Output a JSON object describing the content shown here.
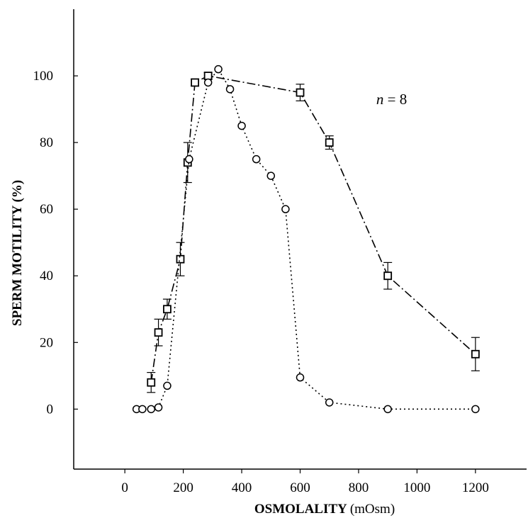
{
  "chart_data": {
    "type": "line",
    "title": "",
    "xlabel": "OSMOLALITY",
    "xlabel_unit": "(mOsm)",
    "ylabel": "SPERM MOTILITY (%)",
    "xlim": [
      -175,
      1375
    ],
    "ylim": [
      -18,
      120
    ],
    "xticks": [
      0,
      200,
      400,
      600,
      800,
      1000,
      1200
    ],
    "xtick_labels": [
      "0",
      "200",
      "400",
      "600",
      "800",
      "1000",
      "1200"
    ],
    "yticks": [
      0,
      20,
      40,
      60,
      80,
      100
    ],
    "ytick_labels": [
      "0",
      "20",
      "40",
      "60",
      "80",
      "100"
    ],
    "grid": false,
    "annotation": {
      "italic": "n",
      "rest": " = 8",
      "x": 880,
      "y": 93
    },
    "series": [
      {
        "marker": "square",
        "line_style": "dash-dot",
        "points": [
          {
            "x": 90,
            "y": 8,
            "err": 3
          },
          {
            "x": 115,
            "y": 23,
            "err": 4
          },
          {
            "x": 145,
            "y": 30,
            "err": 3
          },
          {
            "x": 190,
            "y": 45,
            "err": 5
          },
          {
            "x": 215,
            "y": 74,
            "err": 6
          },
          {
            "x": 240,
            "y": 98,
            "err": 1
          },
          {
            "x": 285,
            "y": 100,
            "err": 1
          },
          {
            "x": 600,
            "y": 95,
            "err": 2.5
          },
          {
            "x": 700,
            "y": 80,
            "err": 2
          },
          {
            "x": 900,
            "y": 40,
            "err": 4
          },
          {
            "x": 1200,
            "y": 16.5,
            "err": 5
          }
        ]
      },
      {
        "marker": "circle",
        "line_style": "dotted",
        "points": [
          {
            "x": 40,
            "y": 0
          },
          {
            "x": 60,
            "y": 0
          },
          {
            "x": 90,
            "y": 0
          },
          {
            "x": 115,
            "y": 0.5
          },
          {
            "x": 145,
            "y": 7
          },
          {
            "x": 220,
            "y": 75
          },
          {
            "x": 285,
            "y": 98
          },
          {
            "x": 320,
            "y": 102
          },
          {
            "x": 360,
            "y": 96
          },
          {
            "x": 400,
            "y": 85
          },
          {
            "x": 450,
            "y": 75
          },
          {
            "x": 500,
            "y": 70
          },
          {
            "x": 550,
            "y": 60
          },
          {
            "x": 600,
            "y": 9.5
          },
          {
            "x": 700,
            "y": 2
          },
          {
            "x": 900,
            "y": 0
          },
          {
            "x": 1200,
            "y": 0
          }
        ]
      }
    ]
  }
}
